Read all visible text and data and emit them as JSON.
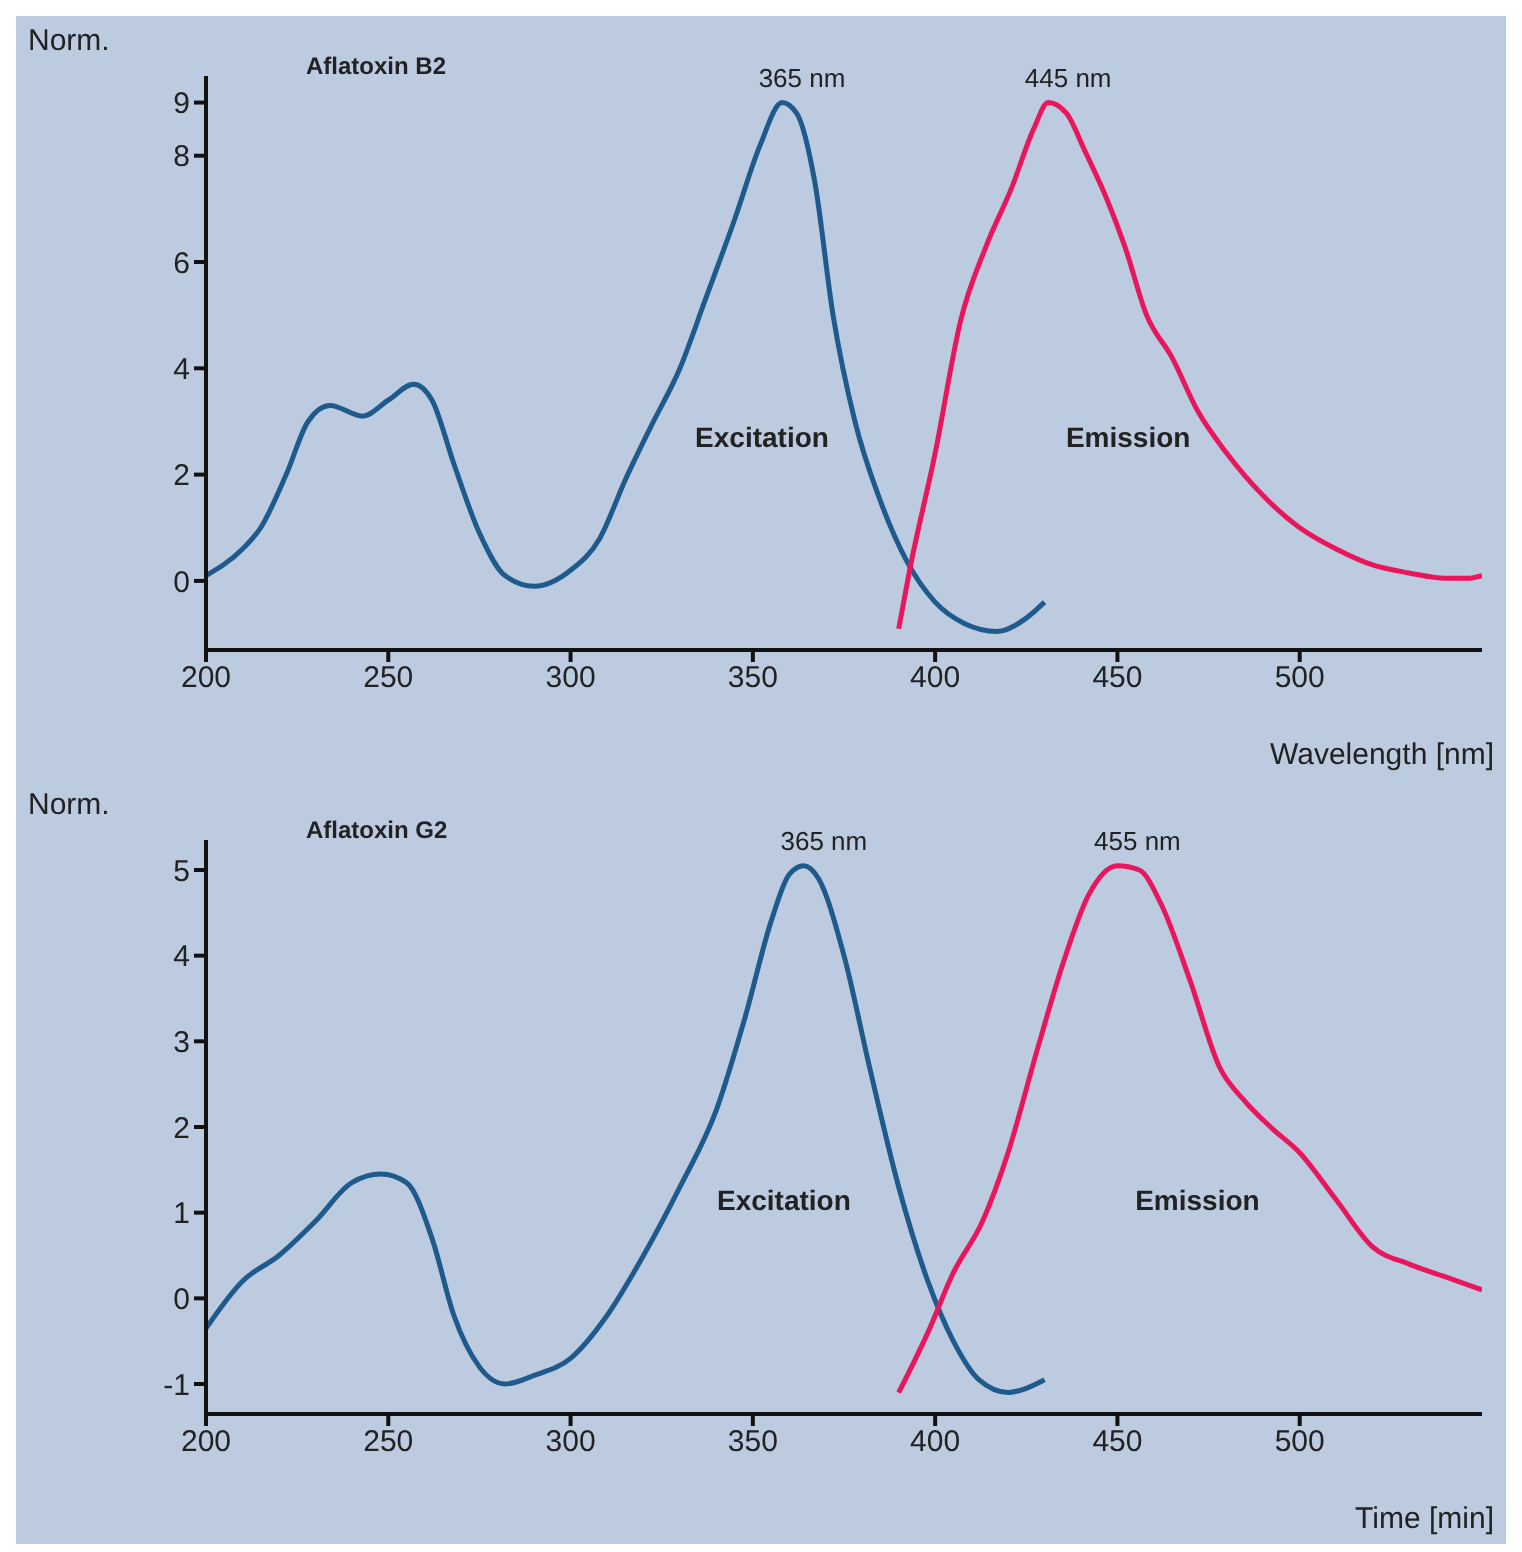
{
  "chart_data": [
    {
      "type": "line",
      "title": "Aflatoxin B2",
      "xlabel": "Wavelength [nm]",
      "ylabel": "Norm.",
      "xlim": [
        200,
        550
      ],
      "xticks": [
        200,
        250,
        300,
        350,
        400,
        450,
        500
      ],
      "ylim": [
        -1.3,
        9.5
      ],
      "yticks": [
        0,
        2,
        4,
        6,
        8,
        9
      ],
      "grid": false,
      "legend": false,
      "marker": "none",
      "line_style": "solid",
      "annotations": [
        "365 nm",
        "445 nm"
      ],
      "series": [
        {
          "name": "Excitation",
          "color": "#1f5a8c",
          "x": [
            200,
            210,
            215,
            222,
            228,
            234,
            243,
            250,
            257,
            262,
            268,
            275,
            282,
            290,
            300,
            308,
            315,
            322,
            330,
            337,
            345,
            352,
            358,
            362,
            367,
            372,
            378,
            385,
            392,
            400,
            408,
            417,
            425,
            430
          ],
          "values": [
            0.1,
            0.6,
            1.0,
            2.0,
            3.0,
            3.3,
            3.1,
            3.4,
            3.7,
            3.4,
            2.2,
            0.9,
            0.1,
            -0.1,
            0.2,
            0.8,
            1.9,
            2.9,
            4.0,
            5.3,
            6.8,
            8.2,
            9.0,
            8.8,
            7.5,
            5.0,
            3.0,
            1.5,
            0.4,
            -0.4,
            -0.8,
            -0.95,
            -0.7,
            -0.4
          ]
        },
        {
          "name": "Emission",
          "color": "#e8175d",
          "x": [
            390,
            393,
            400,
            407,
            414,
            421,
            427,
            431,
            436,
            441,
            447,
            452,
            458,
            465,
            472,
            480,
            490,
            500,
            510,
            520,
            530,
            540,
            546,
            550
          ],
          "values": [
            -0.9,
            0.2,
            2.4,
            4.9,
            6.3,
            7.4,
            8.5,
            9.0,
            8.8,
            8.1,
            7.2,
            6.3,
            5.0,
            4.2,
            3.2,
            2.4,
            1.6,
            1.0,
            0.6,
            0.3,
            0.15,
            0.05,
            0.05,
            0.1
          ]
        }
      ]
    },
    {
      "type": "line",
      "title": "Aflatoxin G2",
      "xlabel": "Time [min]",
      "ylabel": "Norm.",
      "xlim": [
        200,
        550
      ],
      "xticks": [
        200,
        250,
        300,
        350,
        400,
        450,
        500
      ],
      "ylim": [
        -1.35,
        5.35
      ],
      "yticks": [
        -1,
        0,
        1,
        2,
        3,
        4,
        5
      ],
      "grid": false,
      "legend": false,
      "marker": "none",
      "line_style": "solid",
      "annotations": [
        "365 nm",
        "455 nm"
      ],
      "series": [
        {
          "name": "Excitation",
          "color": "#1f5a8c",
          "x": [
            200,
            210,
            220,
            230,
            240,
            248,
            255,
            262,
            268,
            275,
            282,
            290,
            300,
            310,
            320,
            330,
            340,
            348,
            355,
            360,
            364,
            368,
            375,
            382,
            390,
            398,
            405,
            412,
            420,
            425,
            430
          ],
          "values": [
            -0.35,
            0.2,
            0.5,
            0.9,
            1.35,
            1.45,
            1.35,
            0.7,
            -0.2,
            -0.8,
            -1.0,
            -0.9,
            -0.7,
            -0.2,
            0.5,
            1.3,
            2.2,
            3.3,
            4.4,
            4.95,
            5.05,
            4.9,
            4.0,
            2.7,
            1.3,
            0.2,
            -0.5,
            -0.95,
            -1.1,
            -1.05,
            -0.95
          ]
        },
        {
          "name": "Emission",
          "color": "#e8175d",
          "x": [
            390,
            398,
            405,
            413,
            420,
            428,
            435,
            442,
            450,
            456,
            462,
            470,
            478,
            485,
            492,
            500,
            510,
            520,
            530,
            540,
            550
          ],
          "values": [
            -1.1,
            -0.4,
            0.3,
            0.9,
            1.7,
            2.9,
            3.9,
            4.7,
            5.05,
            5.0,
            4.6,
            3.7,
            2.7,
            2.3,
            2.0,
            1.7,
            1.15,
            0.6,
            0.4,
            0.25,
            0.1
          ]
        }
      ]
    }
  ]
}
